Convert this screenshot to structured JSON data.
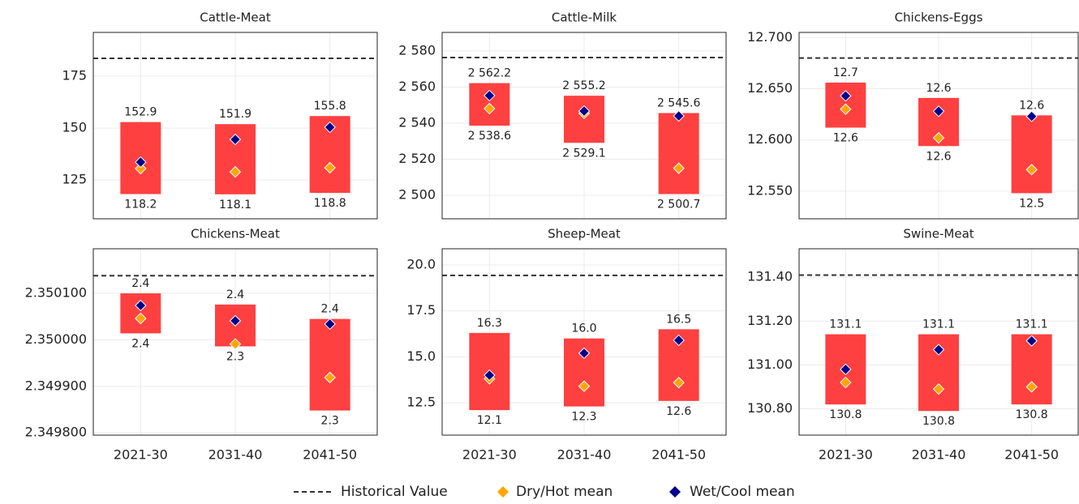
{
  "categories": [
    "2021-30",
    "2031-40",
    "2041-50"
  ],
  "bar_color": "#ff4040",
  "legend": [
    {
      "name": "Historical Value",
      "color": "#333333"
    },
    {
      "name": "Dry/Hot mean",
      "color": "#ffa500"
    },
    {
      "name": "Wet/Cool mean",
      "color": "#00008b"
    }
  ],
  "chart_data": [
    {
      "type": "range",
      "title": "Cattle-Meat",
      "low": [
        118.2,
        118.1,
        118.8
      ],
      "high": [
        152.9,
        151.9,
        155.8
      ],
      "dry_mean": [
        130.5,
        128.9,
        130.9
      ],
      "wet_mean": [
        133.6,
        144.5,
        150.4
      ],
      "historical": 183.6,
      "ylim": [
        106.3,
        196.1
      ],
      "yticks": [
        125,
        150,
        175
      ],
      "grid": true
    },
    {
      "type": "range",
      "title": "Cattle-Milk",
      "low": [
        2538.6,
        2529.1,
        2500.7
      ],
      "high": [
        2562.2,
        2555.2,
        2545.6
      ],
      "low_labels": [
        "2 538.6",
        "2 529.1",
        "2 500.7"
      ],
      "high_labels": [
        "2 562.2",
        "2 555.2",
        "2 545.6"
      ],
      "dry_mean": [
        2548.1,
        2545.4,
        2515.0
      ],
      "wet_mean": [
        2555.3,
        2546.7,
        2544.0
      ],
      "historical": 2576.4,
      "ylim": [
        2487.0,
        2590.3
      ],
      "yticks": [
        {
          "value": 2500,
          "label": "2 500"
        },
        {
          "value": 2520,
          "label": "2 520"
        },
        {
          "value": 2540,
          "label": "2 540"
        },
        {
          "value": 2560,
          "label": "2 560"
        },
        {
          "value": 2580,
          "label": "2 580"
        }
      ],
      "grid": true
    },
    {
      "type": "range",
      "title": "Chickens-Eggs",
      "low": [
        12.612,
        12.594,
        12.548
      ],
      "high": [
        12.656,
        12.641,
        12.624
      ],
      "low_labels": [
        "12.6",
        "12.6",
        "12.5"
      ],
      "high_labels": [
        "12.7",
        "12.6",
        "12.6"
      ],
      "dry_mean": [
        12.63,
        12.602,
        12.571
      ],
      "wet_mean": [
        12.643,
        12.628,
        12.623
      ],
      "historical": 12.68,
      "ylim": [
        12.523,
        12.705
      ],
      "yticks": [
        {
          "value": 12.55,
          "label": "12.550"
        },
        {
          "value": 12.6,
          "label": "12.600"
        },
        {
          "value": 12.65,
          "label": "12.650"
        },
        {
          "value": 12.7,
          "label": "12.700"
        }
      ],
      "grid": true
    },
    {
      "type": "range",
      "title": "Chickens-Meat",
      "low": [
        2.350014,
        2.349986,
        2.349848
      ],
      "high": [
        2.3501,
        2.350076,
        2.350045
      ],
      "low_labels": [
        "2.4",
        "2.3",
        "2.3"
      ],
      "high_labels": [
        "2.4",
        "2.4",
        "2.4"
      ],
      "dry_mean": [
        2.350046,
        2.349991,
        2.349919
      ],
      "wet_mean": [
        2.350074,
        2.350041,
        2.350034
      ],
      "historical": 2.350138,
      "ylim": [
        2.349795,
        2.350196
      ],
      "yticks": [
        {
          "value": 2.3498,
          "label": "2.349800"
        },
        {
          "value": 2.3499,
          "label": "2.349900"
        },
        {
          "value": 2.35,
          "label": "2.350000"
        },
        {
          "value": 2.3501,
          "label": "2.350100"
        }
      ],
      "grid": true
    },
    {
      "type": "range",
      "title": "Sheep-Meat",
      "low": [
        12.1,
        12.3,
        12.6
      ],
      "high": [
        16.3,
        16.0,
        16.5
      ],
      "high_labels": [
        "16.3",
        "16.0",
        "16.5"
      ],
      "dry_mean": [
        13.8,
        13.4,
        13.6
      ],
      "wet_mean": [
        14.0,
        15.2,
        15.9
      ],
      "historical": 19.43,
      "ylim": [
        10.74,
        20.88
      ],
      "yticks": [
        12.5,
        {
          "value": 15,
          "label": "15.0"
        },
        17.5,
        {
          "value": 20,
          "label": "20.0"
        }
      ],
      "grid": true
    },
    {
      "type": "range",
      "title": "Swine-Meat",
      "low": [
        130.82,
        130.79,
        130.82
      ],
      "high": [
        131.14,
        131.14,
        131.14
      ],
      "low_labels": [
        "130.8",
        "130.8",
        "130.8"
      ],
      "high_labels": [
        "131.1",
        "131.1",
        "131.1"
      ],
      "dry_mean": [
        130.92,
        130.89,
        130.9
      ],
      "wet_mean": [
        130.98,
        131.07,
        131.11
      ],
      "historical": 131.41,
      "ylim": [
        130.68,
        131.53
      ],
      "yticks": [
        {
          "value": 130.8,
          "label": "130.80"
        },
        {
          "value": 131,
          "label": "131.00"
        },
        {
          "value": 131.2,
          "label": "131.20"
        },
        {
          "value": 131.4,
          "label": "131.40"
        }
      ],
      "grid": true
    }
  ]
}
